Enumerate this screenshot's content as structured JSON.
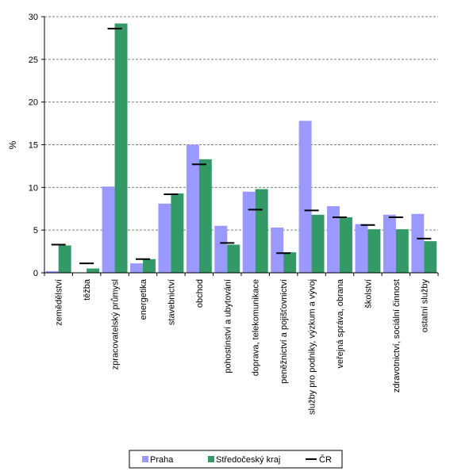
{
  "chart_data": {
    "type": "bar",
    "title": "",
    "xlabel": "",
    "ylabel": "%",
    "ylim": [
      0,
      30
    ],
    "yticks": [
      0,
      5,
      10,
      15,
      20,
      25,
      30
    ],
    "grid": true,
    "legend_position": "bottom",
    "categories": [
      "zemědělství",
      "těžba",
      "zpracovatelský průmysl",
      "energetika",
      "stavebnictví",
      "obchod",
      "pohostinství a ubytování",
      "doprava, telekomunikace",
      "peněžnictví a pojišťovnictví",
      "služby pro podniky, výzkum a vývoj",
      "veřejná správa, obrana",
      "školství",
      "zdravotnictví, sociální činnost",
      "ostatní služby"
    ],
    "series": [
      {
        "name": "Praha",
        "type": "bar",
        "color": "#9999ff",
        "values": [
          0.2,
          0.0,
          10.1,
          1.1,
          8.1,
          15.0,
          5.5,
          9.5,
          5.3,
          17.8,
          7.8,
          5.7,
          6.8,
          6.9
        ]
      },
      {
        "name": "Středočeský kraj",
        "type": "bar",
        "color": "#339966",
        "values": [
          3.2,
          0.5,
          29.2,
          1.6,
          9.3,
          13.3,
          3.3,
          9.8,
          2.4,
          6.8,
          6.5,
          5.1,
          5.1,
          3.7
        ]
      },
      {
        "name": "ČR",
        "type": "marker",
        "color": "#000000",
        "values": [
          3.3,
          1.1,
          28.6,
          1.6,
          9.2,
          12.7,
          3.5,
          7.4,
          2.3,
          7.3,
          6.5,
          5.6,
          6.5,
          4.0
        ]
      }
    ]
  }
}
